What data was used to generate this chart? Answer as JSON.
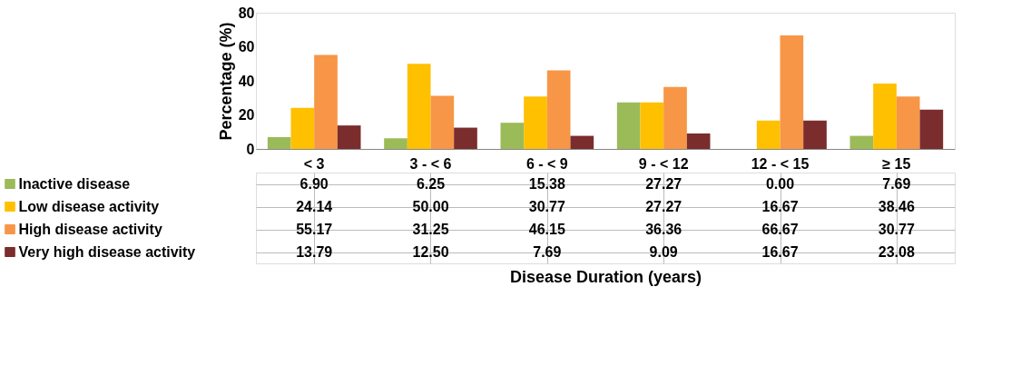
{
  "chart_data": {
    "type": "bar",
    "annotations": [
      "Disease Duration (years)"
    ],
    "ylabel": "Percentage (%)",
    "categories": [
      "< 3",
      "3 - < 6",
      "6 - < 9",
      "9 - < 12",
      "12 - < 15",
      "≥  15"
    ],
    "legend": "bottom left",
    "ylim": [
      0,
      80
    ],
    "yticks": [
      0,
      20,
      40,
      60,
      80
    ],
    "series": [
      {
        "name": "Inactive disease",
        "color": "#9bbb59",
        "values": [
          6.9,
          6.25,
          15.38,
          27.27,
          0.0,
          7.69
        ],
        "value_labels": [
          "6.90",
          "6.25",
          "15.38",
          "27.27",
          "0.00",
          "7.69"
        ]
      },
      {
        "name": "Low disease activity",
        "color": "#ffc000",
        "values": [
          24.14,
          50.0,
          30.77,
          27.27,
          16.67,
          38.46
        ],
        "value_labels": [
          "24.14",
          "50.00",
          "30.77",
          "27.27",
          "16.67",
          "38.46"
        ]
      },
      {
        "name": "High disease activity",
        "color": "#f79646",
        "values": [
          55.17,
          31.25,
          46.15,
          36.36,
          66.67,
          30.77
        ],
        "value_labels": [
          "55.17",
          "31.25",
          "46.15",
          "36.36",
          "66.67",
          "30.77"
        ]
      },
      {
        "name": "Very high disease activity",
        "color": "#7b2c2c",
        "values": [
          13.79,
          12.5,
          7.69,
          9.09,
          16.67,
          23.08
        ],
        "value_labels": [
          "13.79",
          "12.50",
          "7.69",
          "9.09",
          "16.67",
          "23.08"
        ]
      }
    ]
  }
}
